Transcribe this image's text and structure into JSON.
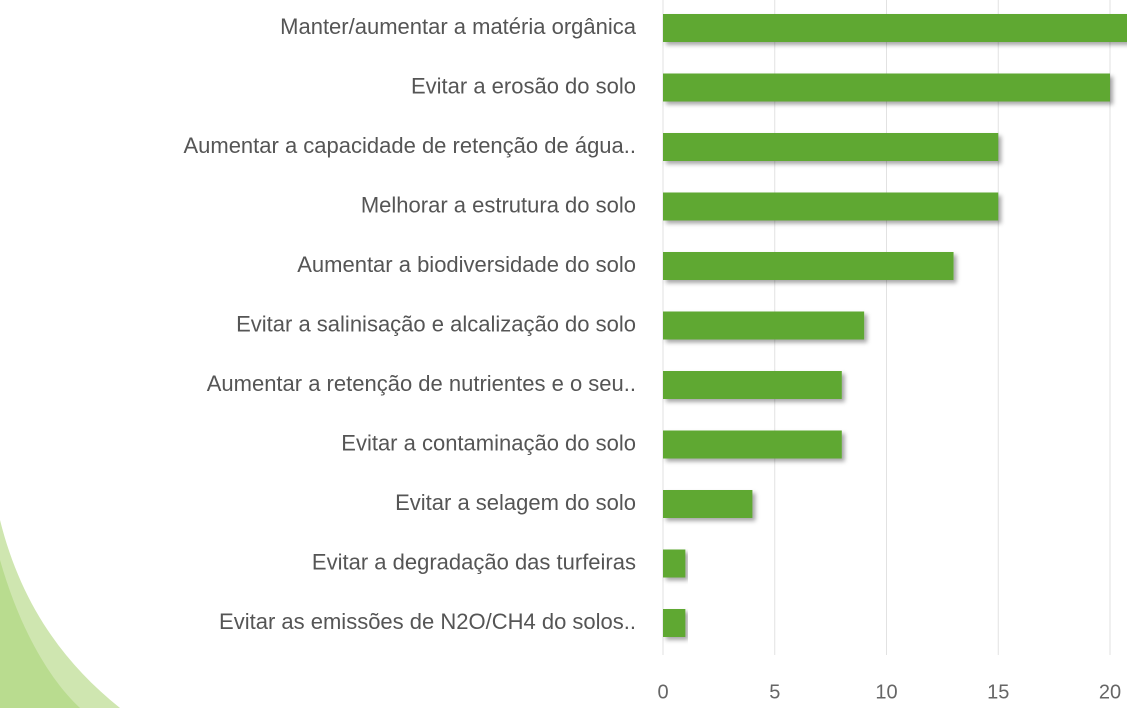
{
  "chart_data": {
    "type": "bar",
    "orientation": "horizontal",
    "categories": [
      "Manter/aumentar a matéria orgânica",
      "Evitar a erosão do solo",
      "Aumentar a capacidade de retenção de água..",
      "Melhorar a estrutura do solo",
      "Aumentar a biodiversidade do solo",
      "Evitar a salinisação e alcalização do solo",
      "Aumentar a retenção de nutrientes e o seu..",
      "Evitar a contaminação do solo",
      "Evitar a selagem do solo",
      "Evitar a degradação das turfeiras",
      "Evitar as emissões de N2O/CH4 do solos.."
    ],
    "values": [
      21,
      20,
      15,
      15,
      13,
      9,
      8,
      8,
      4,
      1,
      1
    ],
    "color": "#5ea831",
    "xlim": [
      0,
      21
    ],
    "xticks": [
      0,
      5,
      10,
      15,
      20
    ],
    "grid": true
  }
}
